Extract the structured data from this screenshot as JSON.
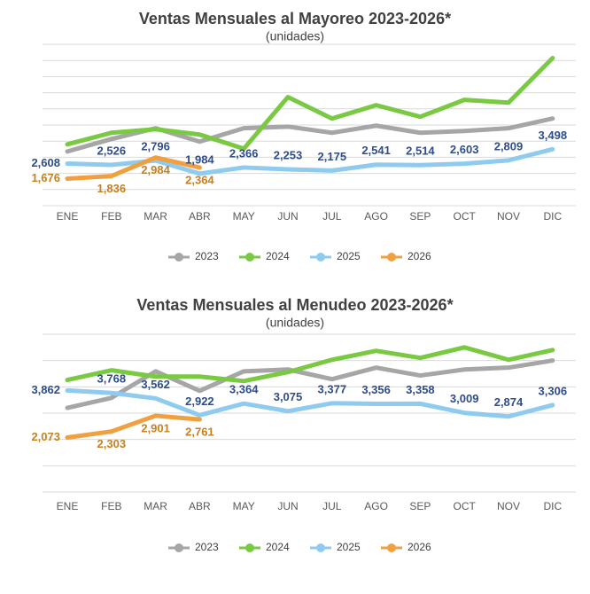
{
  "chart_data": [
    {
      "type": "line",
      "title": "Ventas Mensuales al Mayoreo 2023-2026*",
      "subtitle": "(unidades)",
      "categories": [
        "ENE",
        "FEB",
        "MAR",
        "ABR",
        "MAY",
        "JUN",
        "JUL",
        "AGO",
        "SEP",
        "OCT",
        "NOV",
        "DIC"
      ],
      "series": [
        {
          "name": "2023",
          "color": "#a6a6a6",
          "values": [
            3360,
            4130,
            4800,
            3970,
            4800,
            4900,
            4520,
            4960,
            4520,
            4630,
            4800,
            5400
          ]
        },
        {
          "name": "2024",
          "color": "#7ac943",
          "values": [
            3800,
            4520,
            4740,
            4410,
            3530,
            6730,
            5400,
            6230,
            5510,
            6560,
            6390,
            9150
          ]
        },
        {
          "name": "2025",
          "color": "#8ecbef",
          "values": [
            2608,
            2526,
            2796,
            1984,
            2366,
            2253,
            2175,
            2541,
            2514,
            2603,
            2809,
            3498
          ],
          "value_labels": [
            "2,608",
            "2,526",
            "2,796",
            "1,984",
            "2,366",
            "2,253",
            "2,175",
            "2,541",
            "2,514",
            "2,603",
            "2,809",
            "3,498"
          ]
        },
        {
          "name": "2026",
          "color": "#f0a040",
          "values": [
            1676,
            1836,
            2984,
            2364,
            null,
            null,
            null,
            null,
            null,
            null,
            null,
            null
          ],
          "value_labels": [
            "1,676",
            "1,836",
            "2,984",
            "2,364",
            null,
            null,
            null,
            null,
            null,
            null,
            null,
            null
          ]
        }
      ],
      "ylim": [
        0,
        10000
      ],
      "yticks": [
        0,
        1000,
        2000,
        3000,
        4000,
        5000,
        6000,
        7000,
        8000,
        9000,
        10000
      ],
      "grid": true,
      "legend": "bottom"
    },
    {
      "type": "line",
      "title": "Ventas Mensuales al Menudeo 2023-2026*",
      "subtitle": "(unidades)",
      "categories": [
        "ENE",
        "FEB",
        "MAR",
        "ABR",
        "MAY",
        "JUN",
        "JUL",
        "AGO",
        "SEP",
        "OCT",
        "NOV",
        "DIC"
      ],
      "series": [
        {
          "name": "2023",
          "color": "#a6a6a6",
          "values": [
            3200,
            3580,
            4590,
            3850,
            4590,
            4660,
            4290,
            4730,
            4430,
            4660,
            4730,
            5000
          ]
        },
        {
          "name": "2024",
          "color": "#7ac943",
          "values": [
            4260,
            4630,
            4390,
            4390,
            4220,
            4560,
            5030,
            5370,
            5100,
            5500,
            5030,
            5400
          ]
        },
        {
          "name": "2025",
          "color": "#8ecbef",
          "values": [
            3862,
            3768,
            3562,
            2922,
            3364,
            3075,
            3377,
            3356,
            3358,
            3009,
            2874,
            3306
          ],
          "value_labels": [
            "3,862",
            "3,768",
            "3,562",
            "2,922",
            "3,364",
            "3,075",
            "3,377",
            "3,356",
            "3,358",
            "3,009",
            "2,874",
            "3,306"
          ]
        },
        {
          "name": "2026",
          "color": "#f0a040",
          "values": [
            2073,
            2303,
            2901,
            2761,
            null,
            null,
            null,
            null,
            null,
            null,
            null,
            null
          ],
          "value_labels": [
            "2,073",
            "2,303",
            "2,901",
            "2,761",
            null,
            null,
            null,
            null,
            null,
            null,
            null,
            null
          ]
        }
      ],
      "ylim": [
        0,
        6000
      ],
      "yticks": [
        0,
        1000,
        2000,
        3000,
        4000,
        5000,
        6000
      ],
      "grid": true,
      "legend": "bottom"
    }
  ]
}
